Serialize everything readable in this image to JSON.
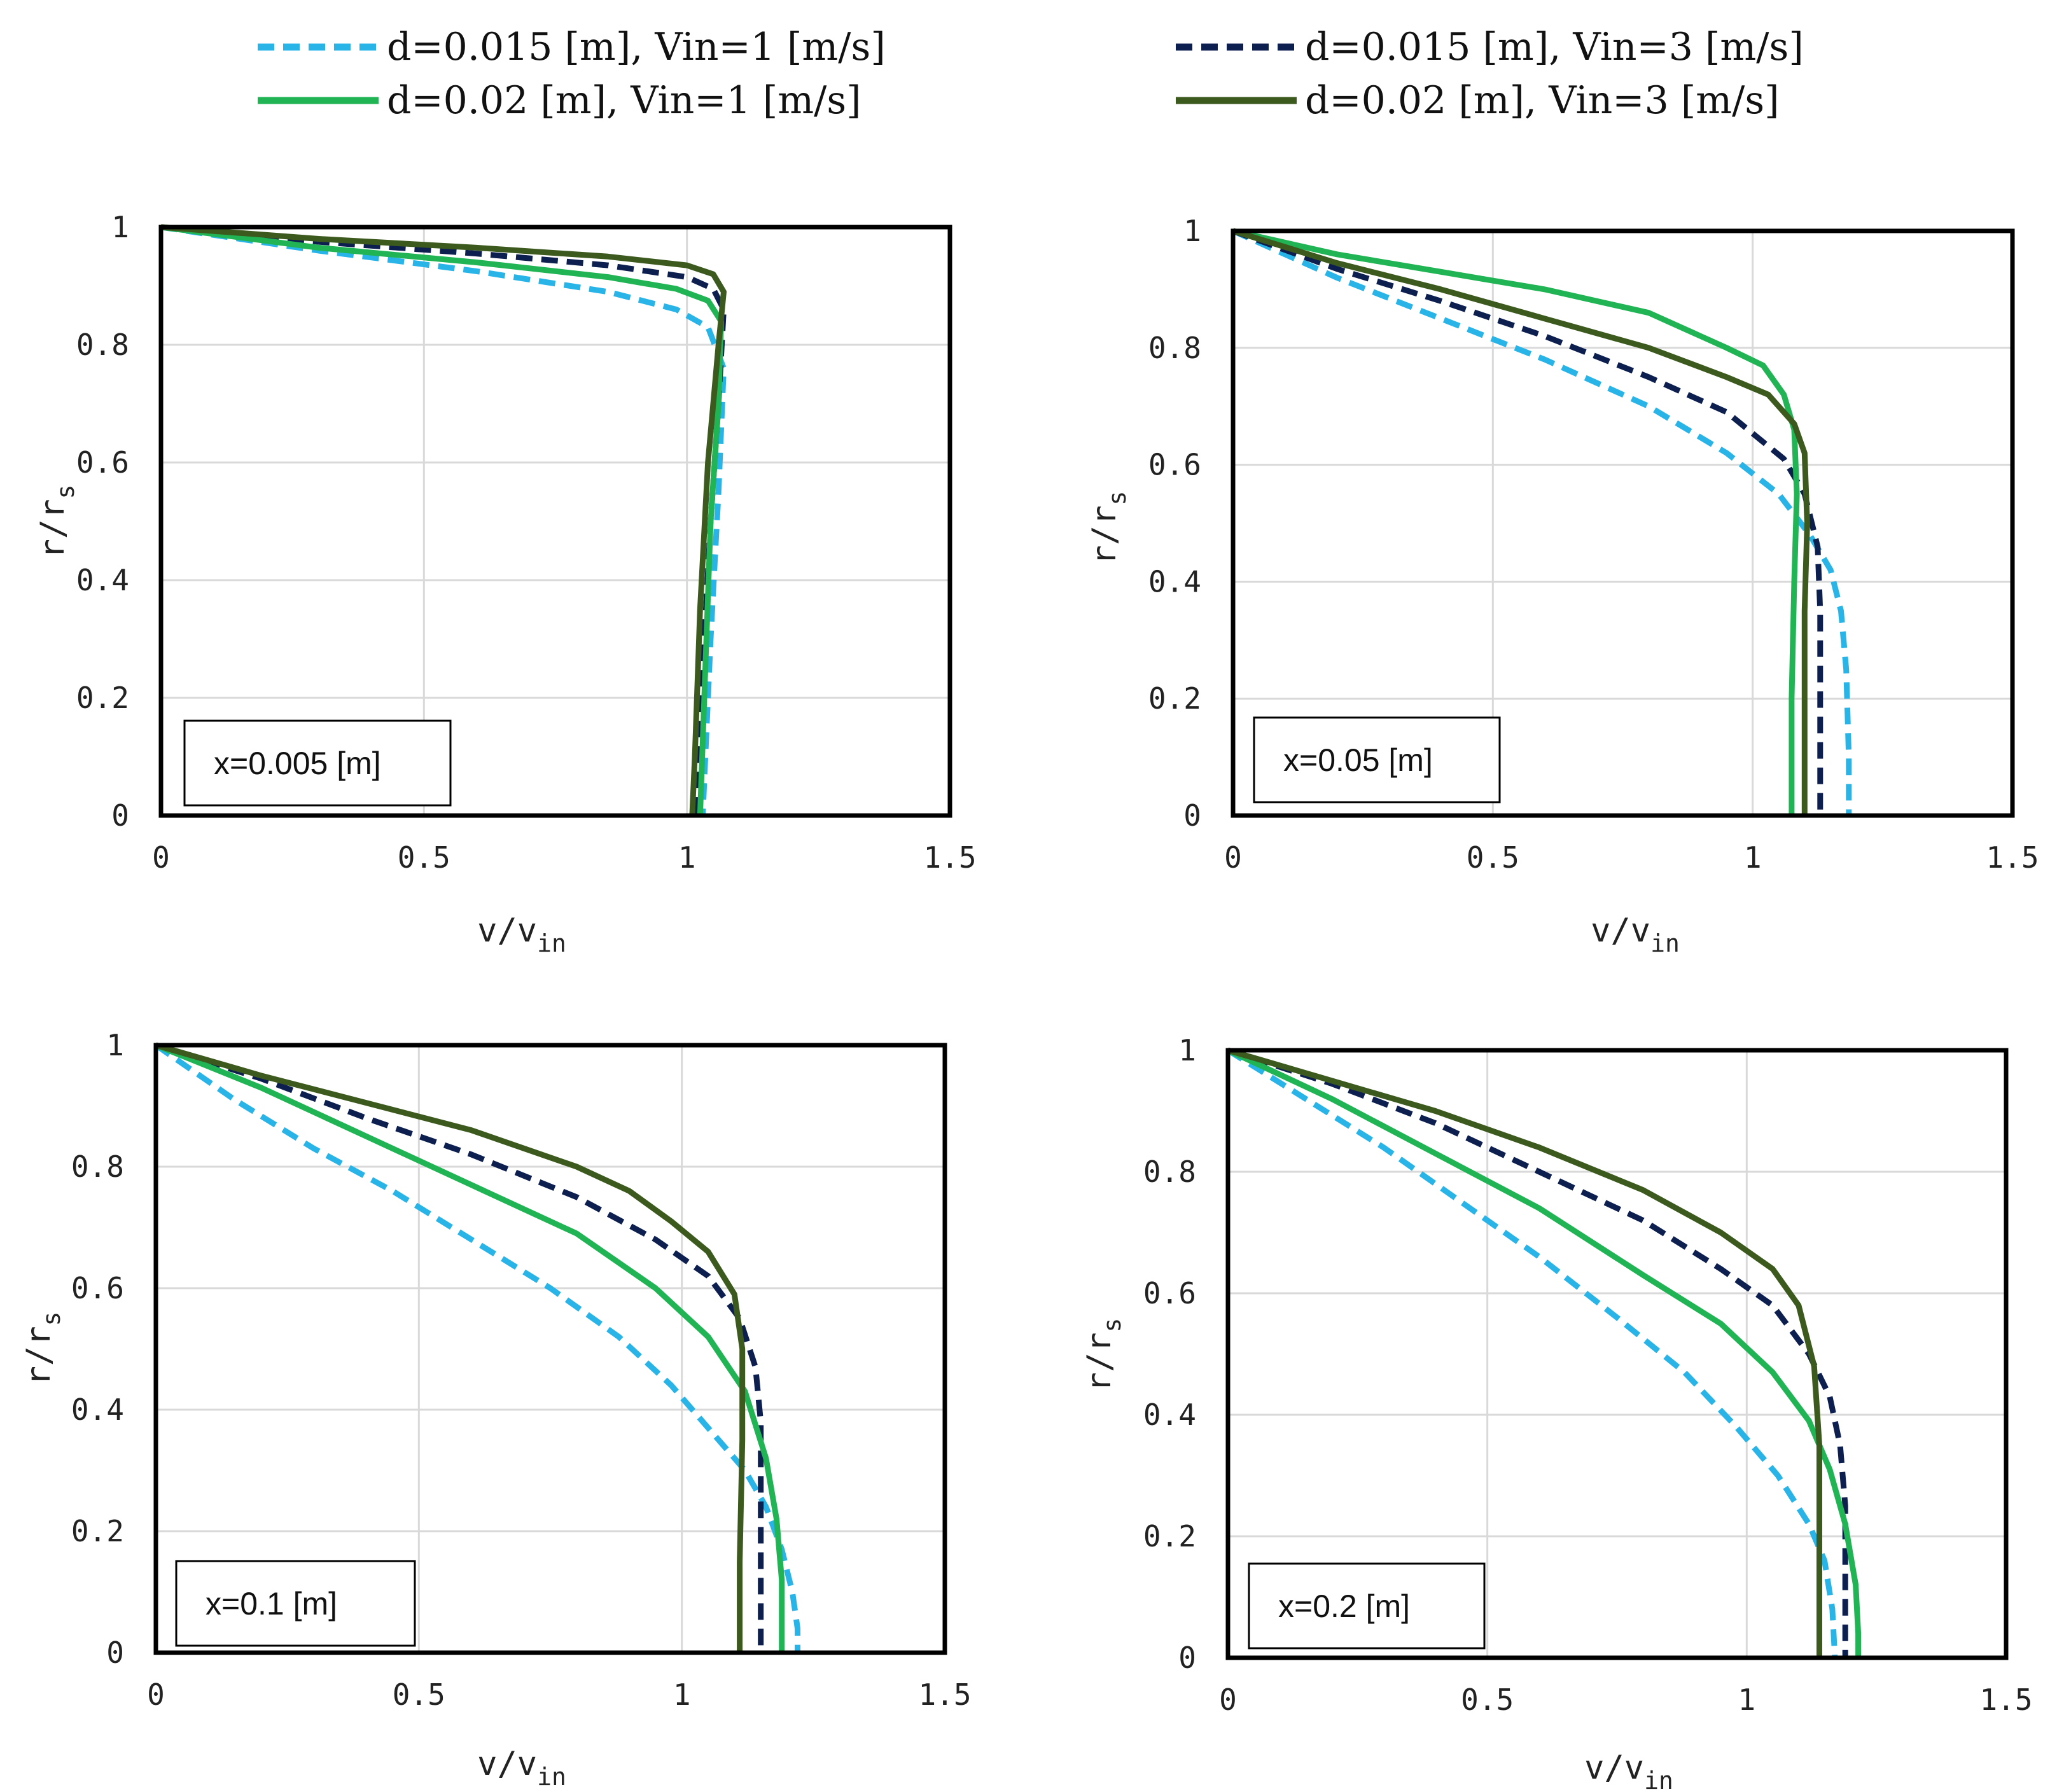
{
  "legend": [
    {
      "label": "d=0.015 [m], Vin=1 [m/s]",
      "color": "#29b4e8",
      "dash": true,
      "width": 9
    },
    {
      "label": "d=0.015 [m], Vin=3 [m/s]",
      "color": "#0d1f4f",
      "dash": true,
      "width": 9
    },
    {
      "label": "d=0.02 [m], Vin=1 [m/s]",
      "color": "#20b454",
      "dash": false,
      "width": 9
    },
    {
      "label": "d=0.02 [m], Vin=3 [m/s]",
      "color": "#3d5a1e",
      "dash": false,
      "width": 9
    }
  ],
  "chart_data": [
    {
      "type": "line",
      "annotation": "x=0.005 [m]",
      "xlabel": "v/v",
      "xlabel_sub": "in",
      "ylabel": "r/r",
      "ylabel_sub": "s",
      "xlim": [
        0,
        1.5
      ],
      "ylim": [
        0,
        1
      ],
      "xticks": [
        "0",
        "0.5",
        "1",
        "1.5"
      ],
      "yticks": [
        "0",
        "0.2",
        "0.4",
        "0.6",
        "0.8",
        "1"
      ],
      "grid": true,
      "series": [
        {
          "name": "d=0.015 [m], Vin=1 [m/s]",
          "points": [
            [
              0,
              1
            ],
            [
              0.3,
              0.96
            ],
            [
              0.6,
              0.925
            ],
            [
              0.85,
              0.89
            ],
            [
              0.98,
              0.86
            ],
            [
              1.04,
              0.83
            ],
            [
              1.07,
              0.76
            ],
            [
              1.06,
              0.55
            ],
            [
              1.045,
              0.3
            ],
            [
              1.035,
              0.1
            ],
            [
              1.03,
              0
            ]
          ]
        },
        {
          "name": "d=0.015 [m], Vin=3 [m/s]",
          "points": [
            [
              0,
              1
            ],
            [
              0.3,
              0.975
            ],
            [
              0.6,
              0.955
            ],
            [
              0.85,
              0.935
            ],
            [
              1.0,
              0.915
            ],
            [
              1.05,
              0.895
            ],
            [
              1.07,
              0.86
            ],
            [
              1.06,
              0.7
            ],
            [
              1.045,
              0.5
            ],
            [
              1.03,
              0.25
            ],
            [
              1.02,
              0
            ]
          ]
        },
        {
          "name": "d=0.02 [m], Vin=1 [m/s]",
          "points": [
            [
              0,
              1
            ],
            [
              0.3,
              0.965
            ],
            [
              0.6,
              0.94
            ],
            [
              0.85,
              0.915
            ],
            [
              0.98,
              0.895
            ],
            [
              1.04,
              0.875
            ],
            [
              1.065,
              0.84
            ],
            [
              1.06,
              0.7
            ],
            [
              1.045,
              0.5
            ],
            [
              1.035,
              0.25
            ],
            [
              1.025,
              0
            ]
          ]
        },
        {
          "name": "d=0.02 [m], Vin=3 [m/s]",
          "points": [
            [
              0,
              1
            ],
            [
              0.3,
              0.98
            ],
            [
              0.6,
              0.965
            ],
            [
              0.85,
              0.95
            ],
            [
              1.0,
              0.935
            ],
            [
              1.05,
              0.92
            ],
            [
              1.07,
              0.89
            ],
            [
              1.06,
              0.8
            ],
            [
              1.04,
              0.6
            ],
            [
              1.025,
              0.35
            ],
            [
              1.015,
              0.1
            ],
            [
              1.01,
              0
            ]
          ]
        }
      ]
    },
    {
      "type": "line",
      "annotation": "x=0.05 [m]",
      "xlabel": "v/v",
      "xlabel_sub": "in",
      "ylabel": "r/r",
      "ylabel_sub": "s",
      "xlim": [
        0,
        1.5
      ],
      "ylim": [
        0,
        1
      ],
      "xticks": [
        "0",
        "0.5",
        "1",
        "1.5"
      ],
      "yticks": [
        "0",
        "0.2",
        "0.4",
        "0.6",
        "0.8",
        "1"
      ],
      "grid": true,
      "series": [
        {
          "name": "d=0.015 [m], Vin=1 [m/s]",
          "points": [
            [
              0,
              1
            ],
            [
              0.2,
              0.92
            ],
            [
              0.4,
              0.85
            ],
            [
              0.6,
              0.78
            ],
            [
              0.8,
              0.7
            ],
            [
              0.95,
              0.62
            ],
            [
              1.05,
              0.55
            ],
            [
              1.11,
              0.48
            ],
            [
              1.15,
              0.42
            ],
            [
              1.17,
              0.35
            ],
            [
              1.18,
              0.25
            ],
            [
              1.185,
              0.1
            ],
            [
              1.185,
              0
            ]
          ]
        },
        {
          "name": "d=0.015 [m], Vin=3 [m/s]",
          "points": [
            [
              0,
              1
            ],
            [
              0.2,
              0.935
            ],
            [
              0.4,
              0.88
            ],
            [
              0.6,
              0.82
            ],
            [
              0.8,
              0.75
            ],
            [
              0.95,
              0.69
            ],
            [
              1.06,
              0.61
            ],
            [
              1.1,
              0.55
            ],
            [
              1.125,
              0.46
            ],
            [
              1.13,
              0.35
            ],
            [
              1.13,
              0.2
            ],
            [
              1.13,
              0
            ]
          ]
        },
        {
          "name": "d=0.02 [m], Vin=1 [m/s]",
          "points": [
            [
              0,
              1
            ],
            [
              0.2,
              0.96
            ],
            [
              0.4,
              0.93
            ],
            [
              0.6,
              0.9
            ],
            [
              0.8,
              0.86
            ],
            [
              0.95,
              0.8
            ],
            [
              1.02,
              0.77
            ],
            [
              1.06,
              0.72
            ],
            [
              1.08,
              0.66
            ],
            [
              1.085,
              0.55
            ],
            [
              1.08,
              0.4
            ],
            [
              1.075,
              0.2
            ],
            [
              1.075,
              0
            ]
          ]
        },
        {
          "name": "d=0.02 [m], Vin=3 [m/s]",
          "points": [
            [
              0,
              1
            ],
            [
              0.2,
              0.945
            ],
            [
              0.4,
              0.9
            ],
            [
              0.6,
              0.85
            ],
            [
              0.8,
              0.8
            ],
            [
              0.95,
              0.75
            ],
            [
              1.03,
              0.72
            ],
            [
              1.08,
              0.67
            ],
            [
              1.1,
              0.62
            ],
            [
              1.105,
              0.5
            ],
            [
              1.1,
              0.35
            ],
            [
              1.1,
              0.15
            ],
            [
              1.1,
              0
            ]
          ]
        }
      ]
    },
    {
      "type": "line",
      "annotation": "x=0.1 [m]",
      "xlabel": "v/v",
      "xlabel_sub": "in",
      "ylabel": "r/r",
      "ylabel_sub": "s",
      "xlim": [
        0,
        1.5
      ],
      "ylim": [
        0,
        1
      ],
      "xticks": [
        "0",
        "0.5",
        "1",
        "1.5"
      ],
      "yticks": [
        "0",
        "0.2",
        "0.4",
        "0.6",
        "0.8",
        "1"
      ],
      "grid": true,
      "series": [
        {
          "name": "d=0.015 [m], Vin=1 [m/s]",
          "points": [
            [
              0,
              1
            ],
            [
              0.15,
              0.91
            ],
            [
              0.3,
              0.83
            ],
            [
              0.45,
              0.76
            ],
            [
              0.6,
              0.68
            ],
            [
              0.75,
              0.6
            ],
            [
              0.88,
              0.52
            ],
            [
              0.98,
              0.44
            ],
            [
              1.06,
              0.36
            ],
            [
              1.12,
              0.3
            ],
            [
              1.16,
              0.24
            ],
            [
              1.19,
              0.17
            ],
            [
              1.21,
              0.1
            ],
            [
              1.22,
              0.04
            ],
            [
              1.22,
              0
            ]
          ]
        },
        {
          "name": "d=0.015 [m], Vin=3 [m/s]",
          "points": [
            [
              0,
              1
            ],
            [
              0.2,
              0.945
            ],
            [
              0.4,
              0.88
            ],
            [
              0.6,
              0.82
            ],
            [
              0.8,
              0.75
            ],
            [
              0.95,
              0.68
            ],
            [
              1.05,
              0.62
            ],
            [
              1.11,
              0.55
            ],
            [
              1.14,
              0.47
            ],
            [
              1.15,
              0.38
            ],
            [
              1.15,
              0.25
            ],
            [
              1.15,
              0.1
            ],
            [
              1.15,
              0
            ]
          ]
        },
        {
          "name": "d=0.02 [m], Vin=1 [m/s]",
          "points": [
            [
              0,
              1
            ],
            [
              0.2,
              0.93
            ],
            [
              0.4,
              0.85
            ],
            [
              0.6,
              0.77
            ],
            [
              0.8,
              0.69
            ],
            [
              0.95,
              0.6
            ],
            [
              1.05,
              0.52
            ],
            [
              1.12,
              0.43
            ],
            [
              1.16,
              0.32
            ],
            [
              1.18,
              0.22
            ],
            [
              1.19,
              0.12
            ],
            [
              1.19,
              0.03
            ],
            [
              1.19,
              0
            ]
          ]
        },
        {
          "name": "d=0.02 [m], Vin=3 [m/s]",
          "points": [
            [
              0,
              1
            ],
            [
              0.2,
              0.95
            ],
            [
              0.4,
              0.905
            ],
            [
              0.6,
              0.86
            ],
            [
              0.8,
              0.8
            ],
            [
              0.9,
              0.76
            ],
            [
              0.98,
              0.71
            ],
            [
              1.05,
              0.66
            ],
            [
              1.1,
              0.59
            ],
            [
              1.115,
              0.5
            ],
            [
              1.115,
              0.35
            ],
            [
              1.11,
              0.15
            ],
            [
              1.11,
              0
            ]
          ]
        }
      ]
    },
    {
      "type": "line",
      "annotation": "x=0.2 [m]",
      "xlabel": "v/v",
      "xlabel_sub": "in",
      "ylabel": "r/r",
      "ylabel_sub": "s",
      "xlim": [
        0,
        1.5
      ],
      "ylim": [
        0,
        1
      ],
      "xticks": [
        "0",
        "0.5",
        "1",
        "1.5"
      ],
      "yticks": [
        "0",
        "0.2",
        "0.4",
        "0.6",
        "0.8",
        "1"
      ],
      "grid": true,
      "series": [
        {
          "name": "d=0.015 [m], Vin=1 [m/s]",
          "points": [
            [
              0,
              1
            ],
            [
              0.15,
              0.92
            ],
            [
              0.3,
              0.84
            ],
            [
              0.45,
              0.75
            ],
            [
              0.6,
              0.66
            ],
            [
              0.75,
              0.56
            ],
            [
              0.88,
              0.47
            ],
            [
              0.98,
              0.38
            ],
            [
              1.06,
              0.3
            ],
            [
              1.12,
              0.22
            ],
            [
              1.15,
              0.16
            ],
            [
              1.165,
              0.08
            ],
            [
              1.17,
              0
            ]
          ]
        },
        {
          "name": "d=0.015 [m], Vin=3 [m/s]",
          "points": [
            [
              0,
              1
            ],
            [
              0.2,
              0.945
            ],
            [
              0.4,
              0.88
            ],
            [
              0.6,
              0.8
            ],
            [
              0.8,
              0.72
            ],
            [
              0.95,
              0.64
            ],
            [
              1.05,
              0.58
            ],
            [
              1.12,
              0.5
            ],
            [
              1.16,
              0.43
            ],
            [
              1.18,
              0.35
            ],
            [
              1.19,
              0.25
            ],
            [
              1.19,
              0.1
            ],
            [
              1.19,
              0
            ]
          ]
        },
        {
          "name": "d=0.02 [m], Vin=1 [m/s]",
          "points": [
            [
              0,
              1
            ],
            [
              0.2,
              0.92
            ],
            [
              0.4,
              0.83
            ],
            [
              0.6,
              0.74
            ],
            [
              0.8,
              0.63
            ],
            [
              0.95,
              0.55
            ],
            [
              1.05,
              0.47
            ],
            [
              1.12,
              0.39
            ],
            [
              1.16,
              0.31
            ],
            [
              1.19,
              0.22
            ],
            [
              1.21,
              0.12
            ],
            [
              1.215,
              0.04
            ],
            [
              1.215,
              0
            ]
          ]
        },
        {
          "name": "d=0.02 [m], Vin=3 [m/s]",
          "points": [
            [
              0,
              1
            ],
            [
              0.2,
              0.95
            ],
            [
              0.4,
              0.9
            ],
            [
              0.6,
              0.84
            ],
            [
              0.8,
              0.77
            ],
            [
              0.95,
              0.7
            ],
            [
              1.05,
              0.64
            ],
            [
              1.1,
              0.58
            ],
            [
              1.13,
              0.48
            ],
            [
              1.14,
              0.35
            ],
            [
              1.14,
              0.15
            ],
            [
              1.14,
              0
            ]
          ]
        }
      ]
    }
  ]
}
